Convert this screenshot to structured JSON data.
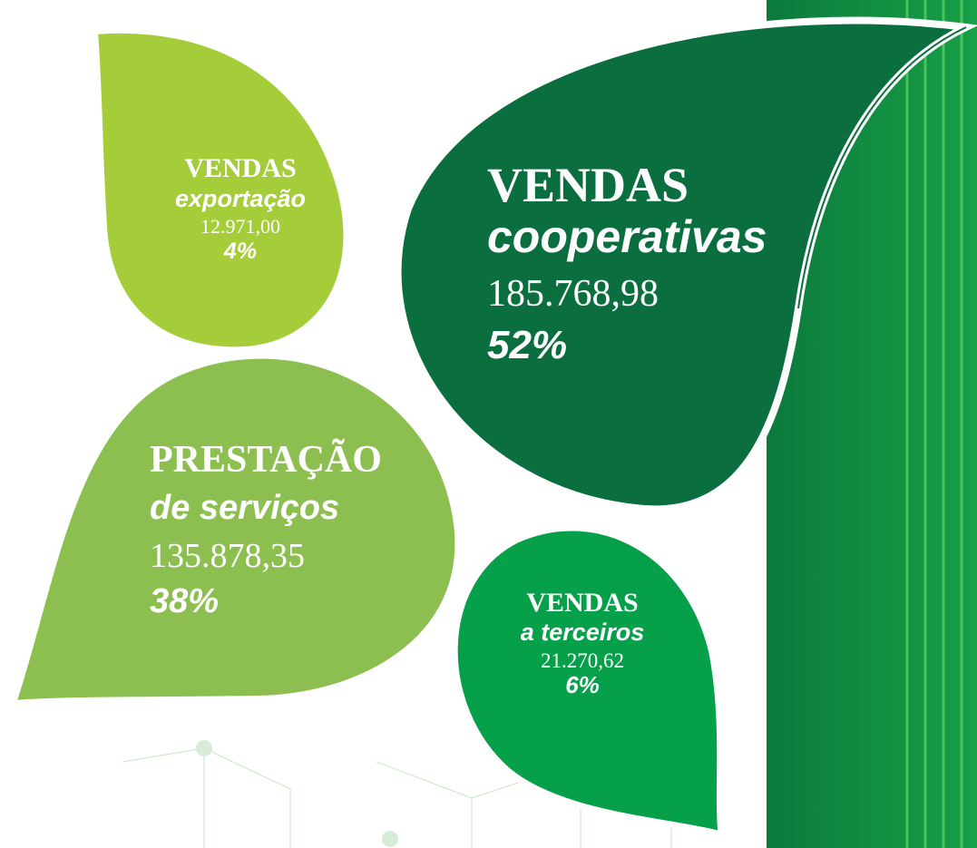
{
  "leaves": [
    {
      "title": "VENDAS",
      "subtitle": "exportação",
      "amount": "12.971,00",
      "share": "4%"
    },
    {
      "title": "VENDAS",
      "subtitle": "cooperativas",
      "amount": "185.768,98",
      "share": "52%"
    },
    {
      "title": "PRESTAÇÃO",
      "subtitle": "de serviços",
      "amount": "135.878,35",
      "share": "38%"
    },
    {
      "title": "VENDAS",
      "subtitle": "a terceiros",
      "amount": "21.270,62",
      "share": "6%"
    }
  ]
}
